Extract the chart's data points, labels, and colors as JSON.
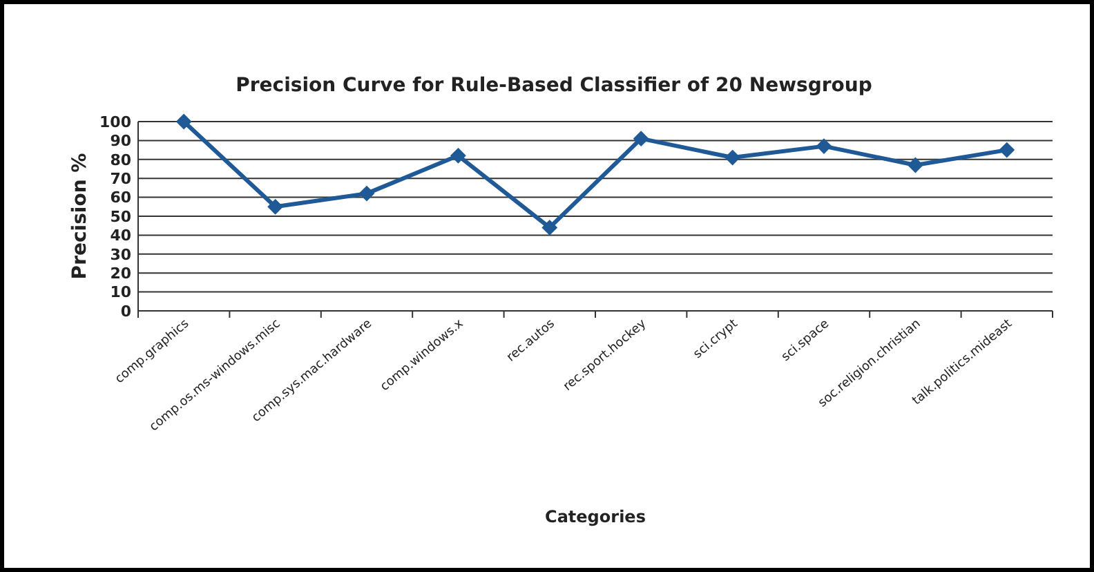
{
  "chart_data": {
    "type": "line",
    "title": "Precision Curve for Rule-Based Classifier of 20 Newsgroup",
    "xlabel": "Categories",
    "ylabel": "Precision %",
    "categories": [
      "comp.graphics",
      "comp.os.ms-windows.misc",
      "comp.sys.mac.hardware",
      "comp.windows.x",
      "rec.autos",
      "rec.sport.hockey",
      "sci.crypt",
      "sci.space",
      "soc.religion.christian",
      "talk.politics.mideast"
    ],
    "series": [
      {
        "color": "#1f5a96",
        "values": [
          100,
          55,
          62,
          82,
          44,
          91,
          81,
          87,
          77,
          85
        ]
      }
    ],
    "ylim": [
      0,
      100
    ],
    "yticks": [
      0,
      10,
      20,
      30,
      40,
      50,
      60,
      70,
      80,
      90,
      100
    ],
    "grid": "y",
    "marker": "diamond",
    "line_style": "solid"
  }
}
